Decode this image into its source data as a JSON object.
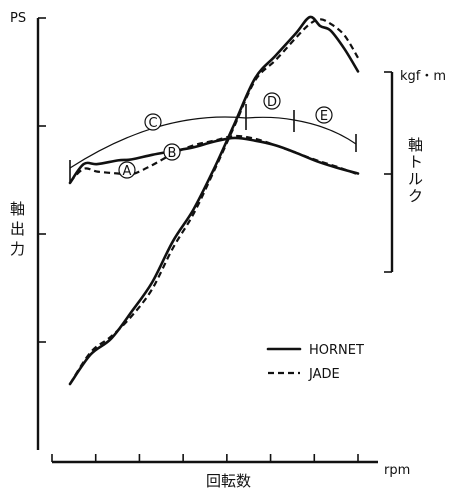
{
  "chart_data": {
    "type": "line",
    "x_labels": {
      "xlabel": "回転数",
      "xunit": "rpm"
    },
    "left_axis": {
      "unit": "PS",
      "label": "軸出力"
    },
    "right_axis": {
      "unit": "kgf・m",
      "label": "軸トルク"
    },
    "legend": {
      "placement": "bottom-right",
      "entries": [
        {
          "name": "HORNET",
          "style": "solid"
        },
        {
          "name": "JADE",
          "style": "dashed"
        }
      ]
    },
    "x_ticks": 8,
    "grid": false,
    "annotations": [
      "A",
      "B",
      "C",
      "D",
      "E"
    ],
    "series": [
      {
        "name": "HORNET",
        "quantity": "power",
        "style": "solid",
        "x": [
          0.0,
          0.6,
          1.2,
          1.8,
          2.4,
          3.0,
          3.6,
          4.2,
          4.8,
          5.4,
          6.0,
          6.6,
          7.0,
          7.3,
          7.6,
          8.0,
          8.4
        ],
        "y": [
          0.0,
          1.3,
          2.0,
          3.2,
          4.5,
          6.3,
          7.7,
          9.5,
          11.5,
          13.5,
          14.5,
          15.5,
          16.2,
          15.8,
          15.6,
          14.8,
          13.8
        ]
      },
      {
        "name": "JADE",
        "quantity": "power",
        "style": "dashed",
        "x": [
          0.0,
          0.6,
          1.2,
          1.8,
          2.4,
          3.0,
          3.6,
          4.2,
          4.8,
          5.4,
          6.0,
          6.6,
          7.0,
          7.3,
          7.6,
          8.0,
          8.4
        ],
        "y": [
          0.0,
          1.4,
          2.1,
          3.0,
          4.2,
          6.0,
          7.5,
          9.4,
          11.4,
          13.4,
          14.3,
          15.3,
          15.9,
          16.1,
          15.9,
          15.4,
          14.4
        ]
      },
      {
        "name": "HORNET",
        "quantity": "torque",
        "style": "solid",
        "x": [
          0.0,
          0.4,
          0.8,
          1.4,
          1.8,
          2.4,
          3.0,
          3.6,
          4.2,
          4.8,
          5.4,
          6.0,
          6.6,
          7.2,
          7.8,
          8.4
        ],
        "y": [
          4.6,
          6.6,
          6.6,
          7.0,
          7.1,
          7.6,
          8.0,
          8.4,
          9.0,
          9.4,
          9.1,
          8.6,
          7.8,
          6.9,
          6.2,
          5.6
        ]
      },
      {
        "name": "JADE",
        "quantity": "torque",
        "style": "dashed",
        "x": [
          0.0,
          0.4,
          0.8,
          1.4,
          1.8,
          2.4,
          3.0,
          3.6,
          4.2,
          4.8,
          5.4,
          6.0,
          6.6,
          7.2,
          7.8,
          8.4
        ],
        "y": [
          4.7,
          6.1,
          5.8,
          5.6,
          5.5,
          6.5,
          7.7,
          8.6,
          9.1,
          9.6,
          9.3,
          8.6,
          7.8,
          7.0,
          6.3,
          5.5
        ]
      }
    ]
  }
}
